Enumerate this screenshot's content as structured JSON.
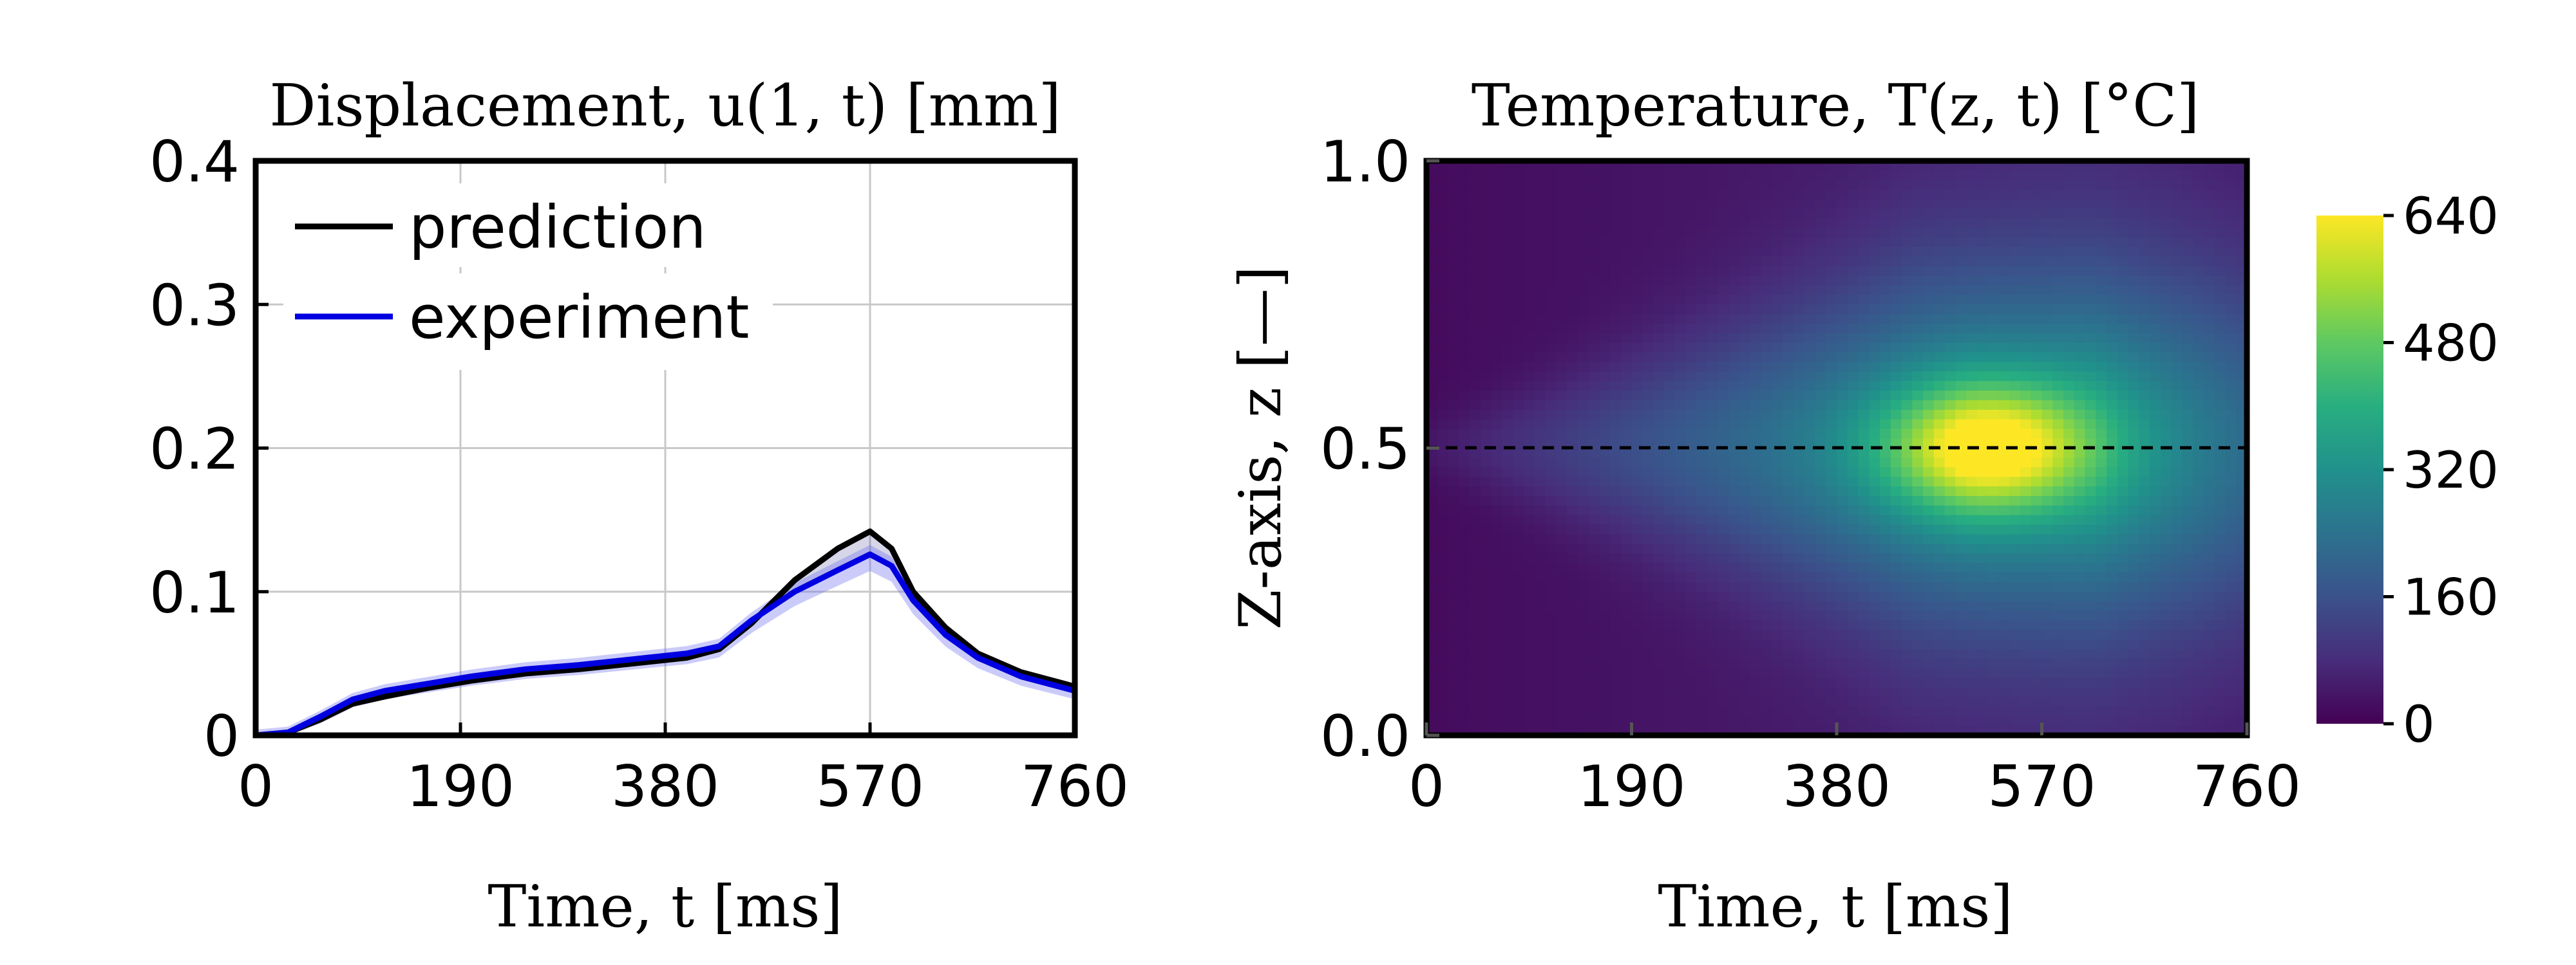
{
  "chart_data": [
    {
      "type": "line",
      "title": "Displacement,  u(1, t) [mm]",
      "xlabel": "Time,  t [ms]",
      "ylabel": "",
      "xlim": [
        0,
        760
      ],
      "ylim": [
        0,
        0.4
      ],
      "xticks": [
        "0",
        "190",
        "380",
        "570",
        "760"
      ],
      "yticks": [
        "0",
        "0.1",
        "0.2",
        "0.3",
        "0.4"
      ],
      "grid": true,
      "legend_position": "top-left",
      "x": [
        0,
        30,
        60,
        90,
        120,
        160,
        200,
        250,
        300,
        350,
        400,
        430,
        460,
        500,
        540,
        570,
        590,
        610,
        640,
        670,
        710,
        760
      ],
      "series": [
        {
          "name": "prediction",
          "color": "#000000",
          "values": [
            0.0,
            0.002,
            0.011,
            0.022,
            0.027,
            0.033,
            0.038,
            0.043,
            0.046,
            0.05,
            0.054,
            0.06,
            0.078,
            0.108,
            0.13,
            0.142,
            0.13,
            0.1,
            0.075,
            0.057,
            0.044,
            0.034
          ]
        },
        {
          "name": "experiment",
          "color": "#0000e0",
          "values": [
            0.0,
            0.002,
            0.013,
            0.025,
            0.031,
            0.036,
            0.041,
            0.046,
            0.049,
            0.053,
            0.057,
            0.062,
            0.08,
            0.1,
            0.115,
            0.126,
            0.118,
            0.094,
            0.07,
            0.054,
            0.041,
            0.031
          ]
        }
      ],
      "band_color": "#b9b9f3"
    },
    {
      "type": "heatmap",
      "title": "Temperature,  T(z, t) [°C]",
      "xlabel": "Time,  t [ms]",
      "ylabel": "Z-axis,  z [—]",
      "xlim": [
        0,
        760
      ],
      "ylim": [
        0.0,
        1.0
      ],
      "xticks": [
        "0",
        "190",
        "380",
        "570",
        "760"
      ],
      "yticks": [
        "0.0",
        "0.5",
        "1.0"
      ],
      "colorbar": {
        "min": 0,
        "max": 640,
        "ticks": [
          "0",
          "160",
          "320",
          "480",
          "640"
        ],
        "colormap": "viridis"
      },
      "peak": {
        "t": 520,
        "z": 0.5,
        "value": 640
      },
      "reference_line": {
        "z": 0.5,
        "style": "dashed"
      }
    }
  ]
}
